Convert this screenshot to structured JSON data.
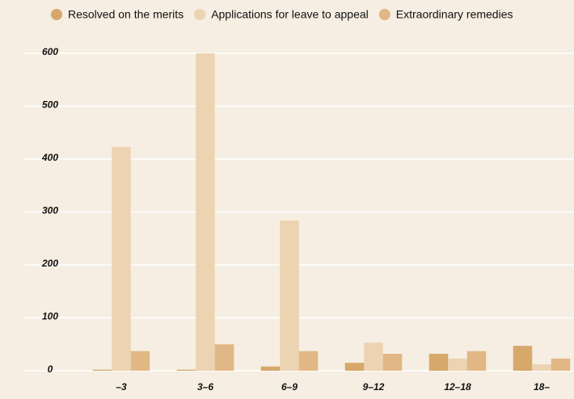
{
  "chart_data": {
    "type": "bar",
    "categories": [
      "–3",
      "3–6",
      "6–9",
      "9–12",
      "12–18",
      "18–"
    ],
    "series": [
      {
        "name": "Resolved on the merits",
        "color": "#d6a86a",
        "values": [
          2,
          2,
          8,
          15,
          32,
          47
        ]
      },
      {
        "name": "Applications for leave to appeal",
        "color": "#ecd3b1",
        "values": [
          423,
          600,
          284,
          53,
          23,
          12
        ]
      },
      {
        "name": "Extraordinary remedies",
        "color": "#e0b785",
        "values": [
          37,
          50,
          37,
          32,
          37,
          23
        ]
      }
    ],
    "ylim": [
      0,
      600
    ],
    "yticks": [
      0,
      100,
      200,
      300,
      400,
      500,
      600
    ],
    "grid": true,
    "legend": "top"
  }
}
